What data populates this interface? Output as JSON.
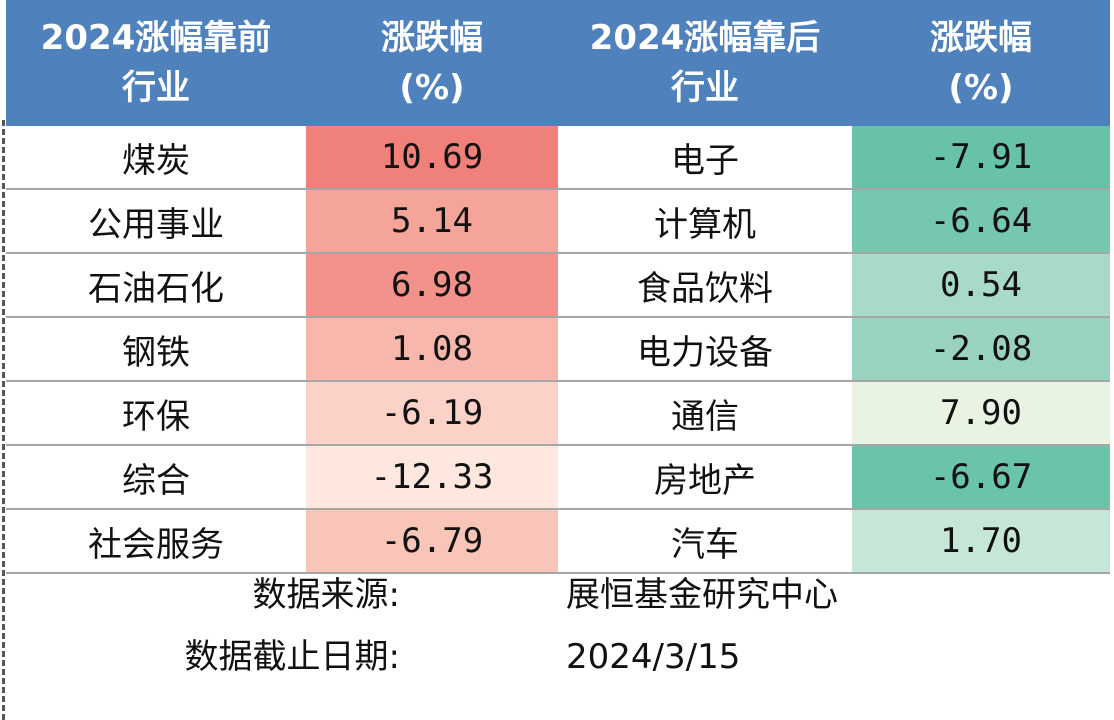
{
  "header": {
    "col1_line1": "2024涨幅靠前",
    "col1_line2": "行业",
    "col2_line1": "涨跌幅",
    "col2_line2": "(%)",
    "col3_line1": "2024涨幅靠后",
    "col3_line2": "行业",
    "col4_line1": "涨跌幅",
    "col4_line2": "(%)"
  },
  "rows": [
    {
      "top_industry": "煤炭",
      "top_change": "10.69",
      "bottom_industry": "电子",
      "bottom_change": "-7.91"
    },
    {
      "top_industry": "公用事业",
      "top_change": "5.14",
      "bottom_industry": "计算机",
      "bottom_change": "-6.64"
    },
    {
      "top_industry": "石油石化",
      "top_change": "6.98",
      "bottom_industry": "食品饮料",
      "bottom_change": "0.54"
    },
    {
      "top_industry": "钢铁",
      "top_change": "1.08",
      "bottom_industry": "电力设备",
      "bottom_change": "-2.08"
    },
    {
      "top_industry": "环保",
      "top_change": "-6.19",
      "bottom_industry": "通信",
      "bottom_change": "7.90"
    },
    {
      "top_industry": "综合",
      "top_change": "-12.33",
      "bottom_industry": "房地产",
      "bottom_change": "-6.67"
    },
    {
      "top_industry": "社会服务",
      "top_change": "-6.79",
      "bottom_industry": "汽车",
      "bottom_change": "1.70"
    }
  ],
  "colors": {
    "header_bg": "#4f81bd",
    "top_change_fills": [
      "#f0807a",
      "#f5a49a",
      "#f2928a",
      "#f7b7ac",
      "#fbd2c7",
      "#fde7de",
      "#f9c5b9"
    ],
    "bottom_change_fills": [
      "#67c2a8",
      "#75c7b0",
      "#a7dac9",
      "#99d3c0",
      "#e9f3e2",
      "#6ac4aa",
      "#c6e6d8"
    ]
  },
  "footer": {
    "source_label": "数据来源:",
    "source_value": "展恒基金研究中心",
    "date_label": "数据截止日期:",
    "date_value": "2024/3/15"
  }
}
